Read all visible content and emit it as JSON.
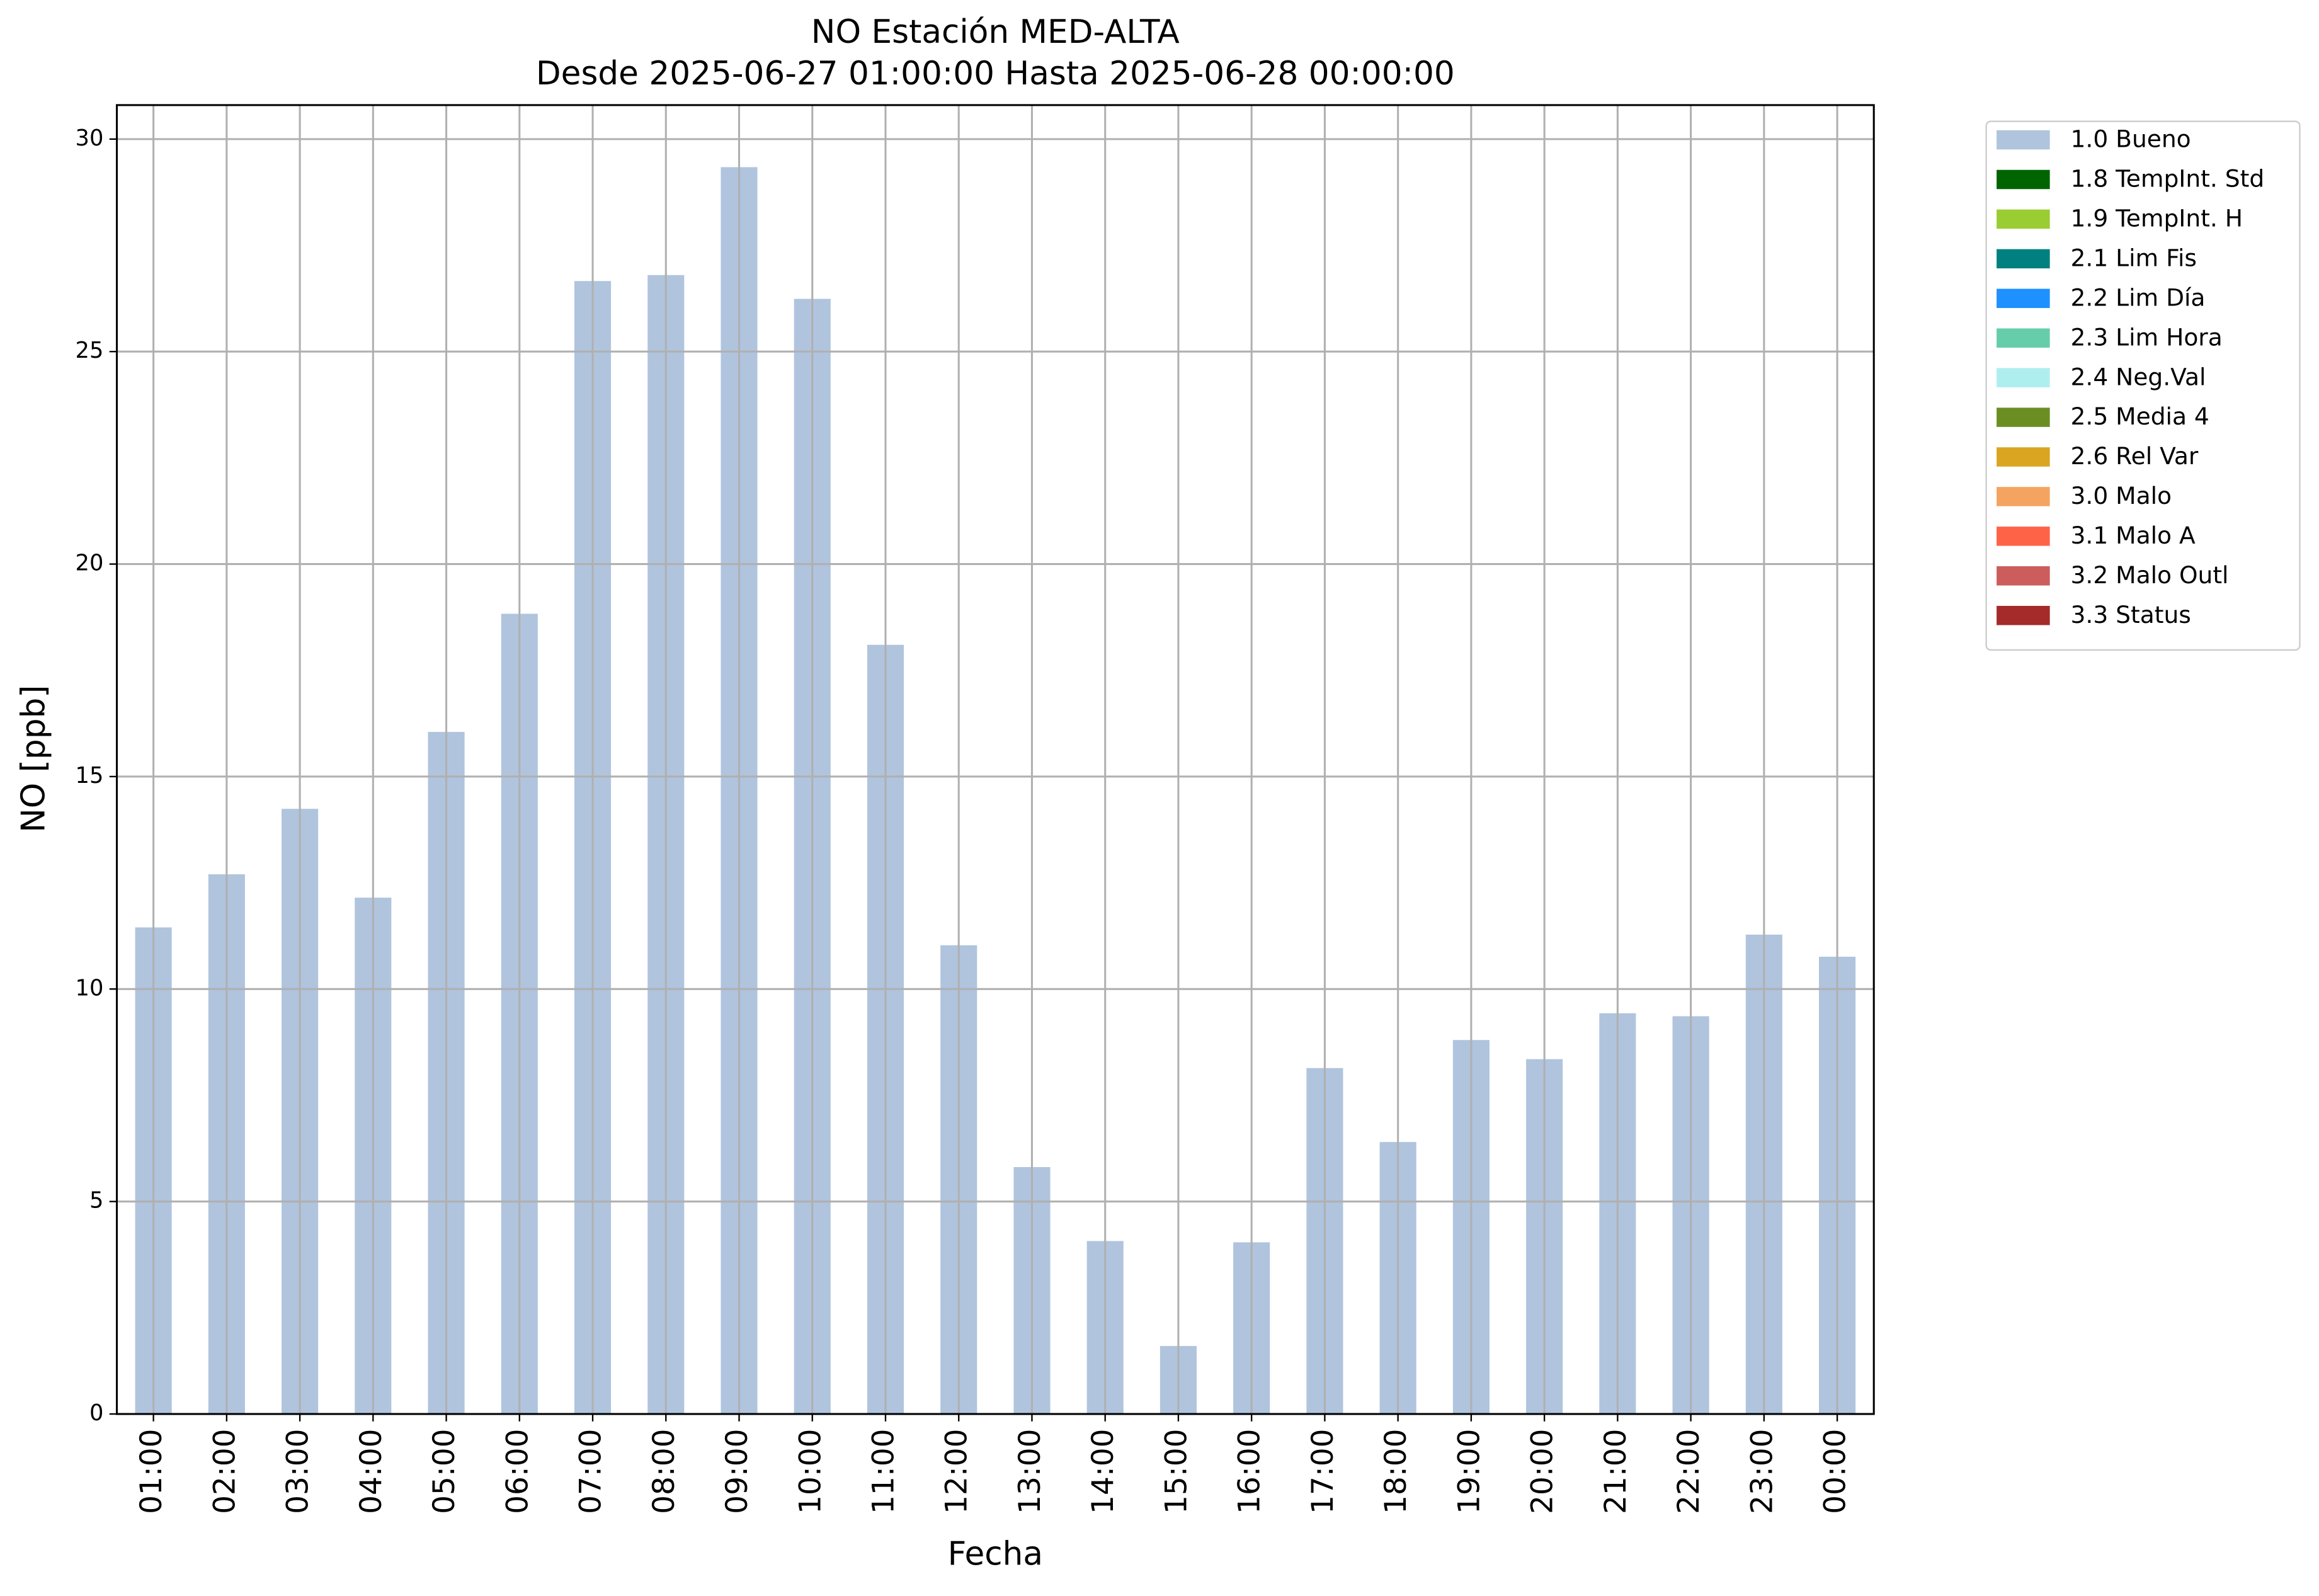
{
  "chart_data": {
    "type": "bar",
    "stacked": true,
    "title": "NO Estación MED-ALTA",
    "subtitle": "Desde 2025-06-27 01:00:00 Hasta 2025-06-28 00:00:00",
    "x_label": "Fecha",
    "y_label": "NO [ppb]",
    "categories": [
      "01:00",
      "02:00",
      "03:00",
      "04:00",
      "05:00",
      "06:00",
      "07:00",
      "08:00",
      "09:00",
      "10:00",
      "11:00",
      "12:00",
      "13:00",
      "14:00",
      "15:00",
      "16:00",
      "17:00",
      "18:00",
      "19:00",
      "20:00",
      "21:00",
      "22:00",
      "23:00",
      "00:00"
    ],
    "series": [
      {
        "name": "1.0 Bueno",
        "color": "#b0c4de",
        "values": [
          11.45,
          12.7,
          14.24,
          12.15,
          16.05,
          18.83,
          26.66,
          26.8,
          29.34,
          26.24,
          18.1,
          11.03,
          5.81,
          4.07,
          1.6,
          4.04,
          8.14,
          6.4,
          8.8,
          8.35,
          9.43,
          9.36,
          11.28,
          10.76
        ]
      },
      {
        "name": "1.8 TempInt. Std",
        "color": "#006400",
        "values": [
          null,
          null,
          null,
          null,
          null,
          null,
          null,
          null,
          null,
          null,
          null,
          null,
          null,
          null,
          null,
          null,
          null,
          null,
          null,
          null,
          null,
          null,
          null,
          null
        ]
      },
      {
        "name": "1.9 TempInt. H",
        "color": "#9acd32",
        "values": [
          null,
          null,
          null,
          null,
          null,
          null,
          null,
          null,
          null,
          null,
          null,
          null,
          null,
          null,
          null,
          null,
          null,
          null,
          null,
          null,
          null,
          null,
          null,
          null
        ]
      },
      {
        "name": "2.1 Lim Fis",
        "color": "#008080",
        "values": [
          null,
          null,
          null,
          null,
          null,
          null,
          null,
          null,
          null,
          null,
          null,
          null,
          null,
          null,
          null,
          null,
          null,
          null,
          null,
          null,
          null,
          null,
          null,
          null
        ]
      },
      {
        "name": "2.2 Lim Día",
        "color": "#1e90ff",
        "values": [
          null,
          null,
          null,
          null,
          null,
          null,
          null,
          null,
          null,
          null,
          null,
          null,
          null,
          null,
          null,
          null,
          null,
          null,
          null,
          null,
          null,
          null,
          null,
          null
        ]
      },
      {
        "name": "2.3 Lim Hora",
        "color": "#66cdaa",
        "values": [
          null,
          null,
          null,
          null,
          null,
          null,
          null,
          null,
          null,
          null,
          null,
          null,
          null,
          null,
          null,
          null,
          null,
          null,
          null,
          null,
          null,
          null,
          null,
          null
        ]
      },
      {
        "name": "2.4 Neg.Val",
        "color": "#afeeee",
        "values": [
          null,
          null,
          null,
          null,
          null,
          null,
          null,
          null,
          null,
          null,
          null,
          null,
          null,
          null,
          null,
          null,
          null,
          null,
          null,
          null,
          null,
          null,
          null,
          null
        ]
      },
      {
        "name": "2.5 Media 4",
        "color": "#6b8e23",
        "values": [
          null,
          null,
          null,
          null,
          null,
          null,
          null,
          null,
          null,
          null,
          null,
          null,
          null,
          null,
          null,
          null,
          null,
          null,
          null,
          null,
          null,
          null,
          null,
          null
        ]
      },
      {
        "name": "2.6 Rel Var",
        "color": "#daa520",
        "values": [
          null,
          null,
          null,
          null,
          null,
          null,
          null,
          null,
          null,
          null,
          null,
          null,
          null,
          null,
          null,
          null,
          null,
          null,
          null,
          null,
          null,
          null,
          null,
          null
        ]
      },
      {
        "name": "3.0 Malo",
        "color": "#f4a460",
        "values": [
          null,
          null,
          null,
          null,
          null,
          null,
          null,
          null,
          null,
          null,
          null,
          null,
          null,
          null,
          null,
          null,
          null,
          null,
          null,
          null,
          null,
          null,
          null,
          null
        ]
      },
      {
        "name": "3.1 Malo A",
        "color": "#ff6347",
        "values": [
          null,
          null,
          null,
          null,
          null,
          null,
          null,
          null,
          null,
          null,
          null,
          null,
          null,
          null,
          null,
          null,
          null,
          null,
          null,
          null,
          null,
          null,
          null,
          null
        ]
      },
      {
        "name": "3.2 Malo Outl",
        "color": "#cd5c5c",
        "values": [
          null,
          null,
          null,
          null,
          null,
          null,
          null,
          null,
          null,
          null,
          null,
          null,
          null,
          null,
          null,
          null,
          null,
          null,
          null,
          null,
          null,
          null,
          null,
          null
        ]
      },
      {
        "name": "3.3 Status",
        "color": "#a52a2a",
        "values": [
          null,
          null,
          null,
          null,
          null,
          null,
          null,
          null,
          null,
          null,
          null,
          null,
          null,
          null,
          null,
          null,
          null,
          null,
          null,
          null,
          null,
          null,
          null,
          null
        ]
      }
    ],
    "ylim": [
      0,
      30.8
    ],
    "yticks": [
      0,
      5,
      10,
      15,
      20,
      25,
      30
    ],
    "grid": true,
    "legend": "outside-upper-right"
  }
}
